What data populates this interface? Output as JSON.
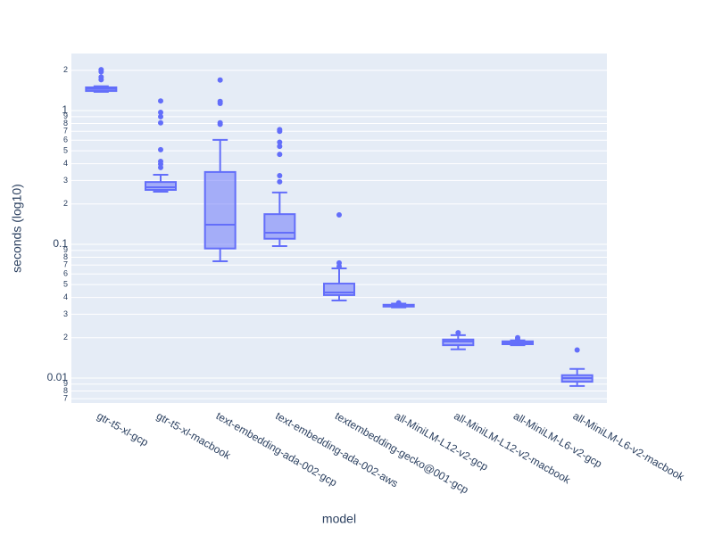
{
  "chart_data": {
    "type": "box",
    "xlabel": "model",
    "ylabel": "seconds (log10)",
    "categories": [
      "gtr-t5-xl-gcp",
      "gtr-t5-xl-macbook",
      "text-embedding-ada-002-gcp",
      "text-embedding-ada-002-aws",
      "textembedding-gecko@001-gcp",
      "all-MiniLM-L12-v2-gcp",
      "all-MiniLM-L12-v2-macbook",
      "all-MiniLM-L6-v2-gcp",
      "all-MiniLM-L6-v2-macbook"
    ],
    "boxes": [
      {
        "min": 1.38,
        "q1": 1.4,
        "median": 1.45,
        "q3": 1.49,
        "max": 1.52,
        "outliers": [
          2.02,
          1.95,
          1.78,
          1.7
        ]
      },
      {
        "min": 0.247,
        "q1": 0.255,
        "median": 0.267,
        "q3": 0.292,
        "max": 0.331,
        "outliers": [
          1.18,
          0.97,
          0.9,
          0.81,
          0.51,
          0.417,
          0.398,
          0.375
        ]
      },
      {
        "min": 0.0747,
        "q1": 0.093,
        "median": 0.14,
        "q3": 0.347,
        "max": 0.603,
        "outliers": [
          1.69,
          1.17,
          1.13,
          0.81,
          0.79
        ]
      },
      {
        "min": 0.097,
        "q1": 0.11,
        "median": 0.122,
        "q3": 0.168,
        "max": 0.244,
        "outliers": [
          0.72,
          0.7,
          0.58,
          0.54,
          0.47,
          0.326,
          0.293
        ]
      },
      {
        "min": 0.038,
        "q1": 0.0417,
        "median": 0.0436,
        "q3": 0.0508,
        "max": 0.066,
        "outliers": [
          0.166,
          0.0725,
          0.0683
        ]
      },
      {
        "min": 0.0337,
        "q1": 0.0342,
        "median": 0.0347,
        "q3": 0.0353,
        "max": 0.036,
        "outliers": [
          0.0365
        ]
      },
      {
        "min": 0.0164,
        "q1": 0.0176,
        "median": 0.0188,
        "q3": 0.0194,
        "max": 0.0209,
        "outliers": [
          0.0218
        ]
      },
      {
        "min": 0.0176,
        "q1": 0.0179,
        "median": 0.0183,
        "q3": 0.0188,
        "max": 0.0191,
        "outliers": [
          0.02,
          0.0194
        ]
      },
      {
        "min": 0.00871,
        "q1": 0.00938,
        "median": 0.01,
        "q3": 0.0105,
        "max": 0.0117,
        "outliers": [
          0.0162
        ]
      }
    ],
    "color": "#636efa",
    "fill": "rgba(99,110,250,0.5)",
    "log_y": true,
    "grid": true,
    "ylim": [
      0.0065,
      2.67
    ],
    "yticks": [
      2,
      1,
      {
        "value": 0.9,
        "label": "9"
      },
      {
        "value": 0.8,
        "label": "8"
      },
      {
        "value": 0.7,
        "label": "7"
      },
      {
        "value": 0.6,
        "label": "6"
      },
      {
        "value": 0.5,
        "label": "5"
      },
      {
        "value": 0.4,
        "label": "4"
      },
      {
        "value": 0.3,
        "label": "3"
      },
      {
        "value": 0.2,
        "label": "2"
      },
      0.1,
      {
        "value": 0.09,
        "label": "9"
      },
      {
        "value": 0.08,
        "label": "8"
      },
      {
        "value": 0.07,
        "label": "7"
      },
      {
        "value": 0.06,
        "label": "6"
      },
      {
        "value": 0.05,
        "label": "5"
      },
      {
        "value": 0.04,
        "label": "4"
      },
      {
        "value": 0.03,
        "label": "3"
      },
      {
        "value": 0.02,
        "label": "2"
      },
      0.01,
      {
        "value": 0.009,
        "label": "9"
      },
      {
        "value": 0.008,
        "label": "8"
      },
      {
        "value": 0.007,
        "label": "7"
      }
    ]
  }
}
